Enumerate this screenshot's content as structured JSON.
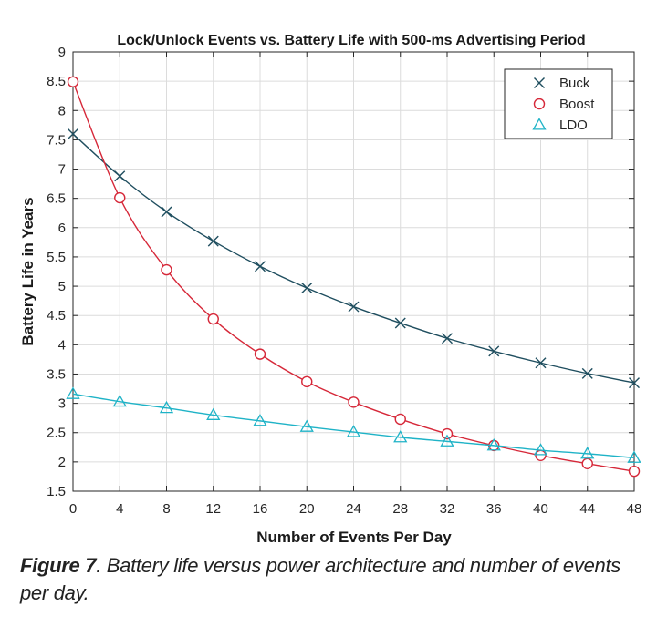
{
  "chart_data": {
    "type": "line",
    "title": "Lock/Unlock Events vs. Battery Life with 500-ms Advertising Period",
    "xlabel": "Number of Events Per Day",
    "ylabel": "Battery Life in Years",
    "xlim": [
      0,
      48
    ],
    "ylim": [
      1.5,
      9
    ],
    "x_ticks": [
      "0",
      "4",
      "8",
      "12",
      "16",
      "20",
      "24",
      "28",
      "32",
      "36",
      "40",
      "44",
      "48"
    ],
    "y_ticks": [
      "1.5",
      "2",
      "2.5",
      "3",
      "3.5",
      "4",
      "4.5",
      "5",
      "5.5",
      "6",
      "6.5",
      "7",
      "7.5",
      "8",
      "8.5",
      "9"
    ],
    "grid": true,
    "legend_position": "top-right",
    "x": [
      0,
      4,
      8,
      12,
      16,
      20,
      24,
      28,
      32,
      36,
      40,
      44,
      48
    ],
    "series": [
      {
        "name": "Buck",
        "marker": "x",
        "color": "#1f4e5f",
        "values": [
          7.6,
          6.88,
          6.27,
          5.77,
          5.34,
          4.97,
          4.65,
          4.37,
          4.11,
          3.89,
          3.69,
          3.51,
          3.35
        ]
      },
      {
        "name": "Boost",
        "marker": "circle",
        "color": "#d62839",
        "values": [
          8.49,
          6.51,
          5.28,
          4.44,
          3.84,
          3.37,
          3.02,
          2.73,
          2.48,
          2.28,
          2.11,
          1.97,
          1.84
        ]
      },
      {
        "name": "LDO",
        "marker": "triangle",
        "color": "#1fb3c7",
        "values": [
          3.16,
          3.03,
          2.92,
          2.8,
          2.7,
          2.6,
          2.51,
          2.42,
          2.35,
          2.28,
          2.2,
          2.14,
          2.07
        ]
      }
    ]
  },
  "caption": {
    "figure_label": "Figure 7",
    "text": ". Battery life versus power architecture and number of events per day."
  }
}
